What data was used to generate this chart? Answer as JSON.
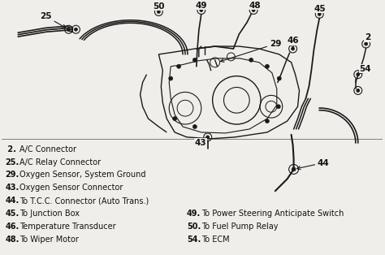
{
  "bg_color": "#f0eeea",
  "line_color": "#1a1a1a",
  "text_color": "#111111",
  "legend_left": [
    [
      " 2.",
      "A/C Connector"
    ],
    [
      "25.",
      "A/C Relay Connector"
    ],
    [
      "29.",
      "Oxygen Sensor, System Ground"
    ],
    [
      "43.",
      "Oxygen Sensor Connector"
    ],
    [
      "44.",
      "To T.C.C. Connector (Auto Trans.)"
    ],
    [
      "45.",
      "To Junction Box"
    ],
    [
      "46.",
      "Temperature Transducer"
    ],
    [
      "48.",
      "To Wiper Motor"
    ]
  ],
  "legend_right": [
    [
      "49.",
      "To Power Steering Anticipate Switch"
    ],
    [
      "50.",
      "To Fuel Pump Relay"
    ],
    [
      "54.",
      "To ECM"
    ]
  ],
  "font_size_legend": 7.0,
  "font_size_label": 7.5
}
